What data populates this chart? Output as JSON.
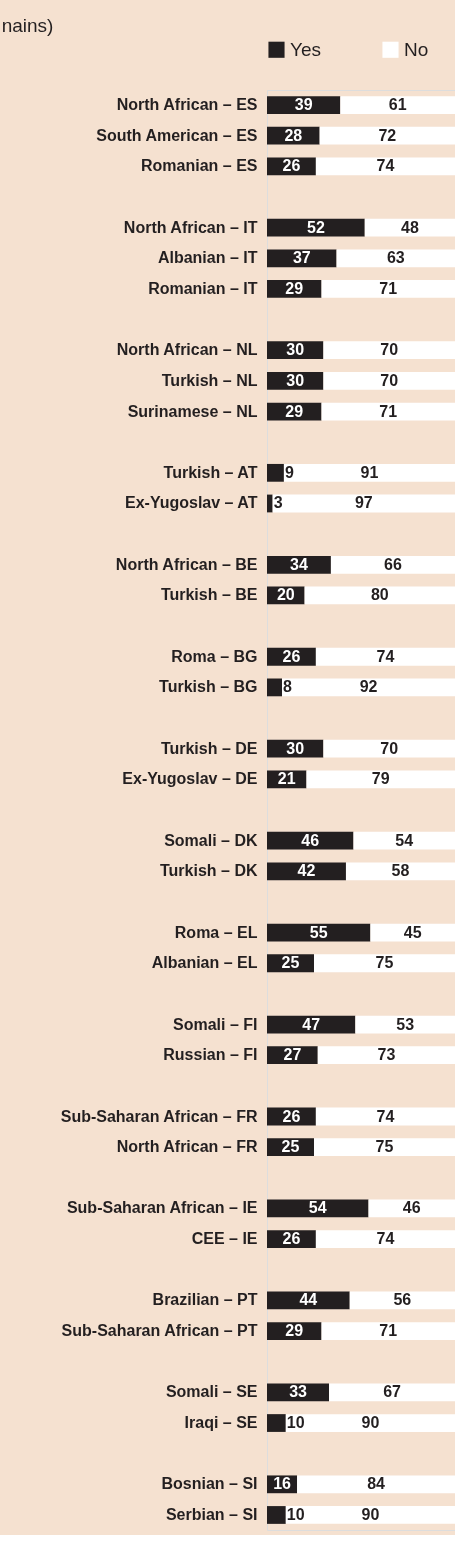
{
  "chart_data": {
    "type": "bar",
    "orientation": "horizontal",
    "stacked": true,
    "title": "nains)",
    "categories": [
      "North African – ES",
      "South American – ES",
      "Romanian – ES",
      null,
      "North African – IT",
      "Albanian – IT",
      "Romanian – IT",
      null,
      "North African – NL",
      "Turkish – NL",
      "Surinamese – NL",
      null,
      "Turkish – AT",
      "Ex-Yugoslav – AT",
      null,
      "North African – BE",
      "Turkish – BE",
      null,
      "Roma – BG",
      "Turkish – BG",
      null,
      "Turkish – DE",
      "Ex-Yugoslav – DE",
      null,
      "Somali – DK",
      "Turkish – DK",
      null,
      "Roma – EL",
      "Albanian – EL",
      null,
      "Somali – FI",
      "Russian – FI",
      null,
      "Sub-Saharan African – FR",
      "North African – FR",
      null,
      "Sub-Saharan African – IE",
      "CEE – IE",
      null,
      "Brazilian – PT",
      "Sub-Saharan African – PT",
      null,
      "Somali – SE",
      "Iraqi – SE",
      null,
      "Bosnian – SI",
      "Serbian – SI"
    ],
    "series": [
      {
        "name": "Yes",
        "color": "#231f20",
        "values": [
          39,
          28,
          26,
          null,
          52,
          37,
          29,
          null,
          30,
          30,
          29,
          null,
          9,
          3,
          null,
          34,
          20,
          null,
          26,
          8,
          null,
          30,
          21,
          null,
          46,
          42,
          null,
          55,
          25,
          null,
          47,
          27,
          null,
          26,
          25,
          null,
          54,
          26,
          null,
          44,
          29,
          null,
          33,
          10,
          null,
          16,
          10
        ]
      },
      {
        "name": "No",
        "color": "#ffffff",
        "values": [
          61,
          72,
          74,
          null,
          48,
          63,
          71,
          null,
          70,
          70,
          71,
          null,
          91,
          97,
          null,
          66,
          80,
          null,
          74,
          92,
          null,
          70,
          79,
          null,
          54,
          58,
          null,
          45,
          75,
          null,
          53,
          73,
          null,
          74,
          75,
          null,
          46,
          74,
          null,
          56,
          71,
          null,
          67,
          90,
          null,
          84,
          90
        ]
      }
    ],
    "data_labels": true,
    "legend": "top",
    "tick_labels": "y"
  }
}
